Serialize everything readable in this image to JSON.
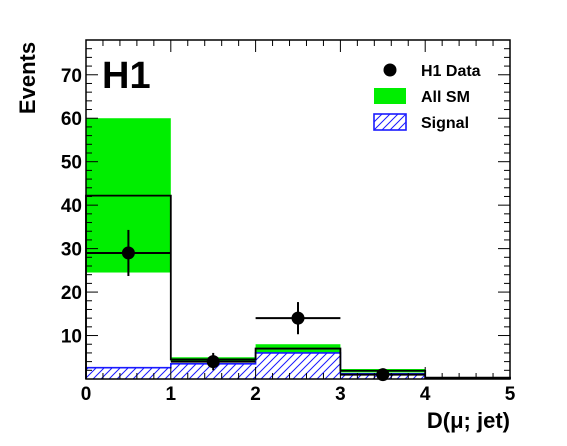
{
  "chart_data": {
    "type": "bar",
    "title": "",
    "logo": "H1",
    "xlabel": "D(μ; jet)",
    "ylabel": "Events",
    "xlim": [
      0,
      5
    ],
    "ylim": [
      0,
      78
    ],
    "x_ticks": [
      "0",
      "1",
      "2",
      "3",
      "4",
      "5"
    ],
    "y_ticks": [
      "10",
      "20",
      "30",
      "40",
      "50",
      "60",
      "70"
    ],
    "bins": [
      [
        0,
        1
      ],
      [
        1,
        2
      ],
      [
        2,
        3
      ],
      [
        3,
        4
      ],
      [
        4,
        5
      ]
    ],
    "series": [
      {
        "name": "All SM",
        "kind": "histogram_with_band",
        "values": [
          42.2,
          4.5,
          7.0,
          1.9,
          0.3
        ],
        "band_low": [
          24.5,
          4.0,
          6.0,
          1.5,
          0.1
        ],
        "band_high": [
          60.0,
          5.0,
          8.0,
          2.3,
          0.4
        ],
        "band_color": "#00ee00",
        "line_color": "#000000"
      },
      {
        "name": "Signal",
        "kind": "hatched_histogram",
        "values": [
          2.6,
          3.5,
          6.0,
          1.2,
          0.2
        ],
        "color": "#1a1aff"
      },
      {
        "name": "H1 Data",
        "kind": "points",
        "x": [
          0.5,
          1.5,
          2.5,
          3.5
        ],
        "y": [
          29,
          4,
          14,
          1
        ],
        "yerr_low": [
          5.3,
          2.0,
          3.7,
          1.0
        ],
        "yerr_high": [
          5.3,
          2.0,
          3.7,
          1.0
        ],
        "xerr": [
          0.5,
          0.5,
          0.5,
          0.5
        ],
        "color": "#000000"
      }
    ],
    "legend": {
      "placement": "top-right",
      "entries": [
        {
          "label": "H1 Data",
          "symbol": "marker"
        },
        {
          "label": "All SM",
          "symbol": "band"
        },
        {
          "label": "Signal",
          "symbol": "hatched"
        }
      ]
    }
  }
}
